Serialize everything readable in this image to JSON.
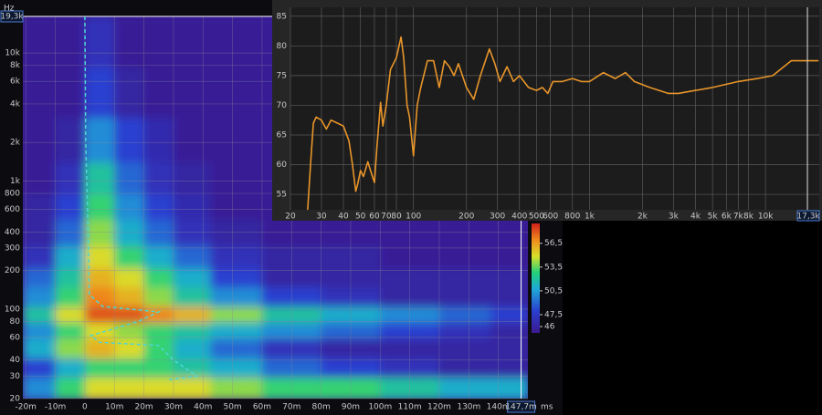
{
  "chart_data": [
    {
      "type": "heatmap",
      "y_unit": "Hz",
      "x_unit": "ms",
      "x": [
        -15,
        -5,
        5,
        15,
        25,
        35,
        50,
        70,
        90,
        110,
        130,
        145
      ],
      "y": [
        25,
        35,
        50,
        70,
        90,
        125,
        180,
        250,
        400,
        630,
        1000,
        2000,
        5000,
        12000
      ],
      "z": [
        [
          50,
          53,
          55,
          55,
          55,
          55,
          54,
          53,
          53,
          52,
          51,
          51
        ],
        [
          48,
          51,
          53,
          53,
          53,
          52,
          51,
          49,
          48,
          47,
          46,
          46
        ],
        [
          51,
          54,
          56,
          55,
          53,
          51,
          49,
          47,
          46,
          46,
          46,
          46
        ],
        [
          50,
          53,
          55,
          54,
          53,
          52,
          51,
          50,
          49,
          48,
          47,
          46
        ],
        [
          52,
          55,
          58,
          58,
          57,
          56,
          54,
          52,
          51,
          50,
          49,
          48
        ],
        [
          50,
          53,
          57,
          56,
          54,
          52,
          50,
          48,
          47,
          46,
          46,
          46
        ],
        [
          49,
          52,
          56,
          55,
          53,
          51,
          48,
          46,
          46,
          46,
          46,
          46
        ],
        [
          47,
          51,
          55,
          53,
          51,
          49,
          47,
          46,
          46,
          45.5,
          45.5,
          45.5
        ],
        [
          46,
          49,
          54,
          51,
          49,
          47,
          46,
          45.5,
          45.5,
          45.5,
          45.5,
          45.5
        ],
        [
          46,
          48,
          53,
          50,
          48,
          46.5,
          45.5,
          45.5,
          45.5,
          45.5,
          45.5,
          45.5
        ],
        [
          45.5,
          47,
          52,
          49,
          47,
          46,
          45.5,
          45.5,
          45.5,
          45.5,
          45.5,
          45.5
        ],
        [
          45.5,
          46,
          50,
          48,
          46.5,
          45.5,
          45.5,
          45.5,
          45.5,
          45.5,
          45.5,
          45.5
        ],
        [
          45.5,
          45.5,
          48,
          46,
          45.5,
          45.5,
          45.5,
          45.5,
          45.5,
          45.5,
          45.5,
          45.5
        ],
        [
          45.5,
          45.5,
          47,
          45.5,
          45.5,
          45.5,
          45.5,
          45.5,
          45.5,
          45.5,
          45.5,
          45.5
        ]
      ],
      "xlim": [
        -21,
        150
      ],
      "ylim": [
        20,
        19300
      ],
      "ylog": true,
      "zlim": [
        45.2,
        59
      ],
      "xticks": [
        {
          "value": -20,
          "label": "-20m"
        },
        {
          "value": -10,
          "label": "-10m"
        },
        0,
        {
          "value": 10,
          "label": "10m"
        },
        {
          "value": 20,
          "label": "20m"
        },
        {
          "value": 30,
          "label": "30m"
        },
        {
          "value": 40,
          "label": "40m"
        },
        {
          "value": 50,
          "label": "50m"
        },
        {
          "value": 60,
          "label": "60m"
        },
        {
          "value": 70,
          "label": "70m"
        },
        {
          "value": 80,
          "label": "80m"
        },
        {
          "value": 90,
          "label": "90m"
        },
        {
          "value": 100,
          "label": "100m"
        },
        {
          "value": 110,
          "label": "110m"
        },
        {
          "value": 120,
          "label": "120m"
        },
        {
          "value": 130,
          "label": "130m"
        },
        {
          "value": 140,
          "label": "140m"
        }
      ],
      "yticks": [
        20,
        30,
        40,
        60,
        80,
        100,
        200,
        300,
        400,
        600,
        800,
        {
          "value": 1000,
          "label": "1k"
        },
        {
          "value": 2000,
          "label": "2k"
        },
        {
          "value": 4000,
          "label": "4k"
        },
        {
          "value": 6000,
          "label": "6k"
        },
        {
          "value": 8000,
          "label": "8k"
        },
        {
          "value": 10000,
          "label": "10k"
        }
      ],
      "zticks": [
        {
          "value": 56.5,
          "label": "56,5"
        },
        {
          "value": 53.5,
          "label": "53,5"
        },
        {
          "value": 50.5,
          "label": "50,5"
        },
        {
          "value": 47.5,
          "label": "47,5"
        },
        46
      ],
      "x_cursor": {
        "value": 147.7,
        "label": "147,7m"
      },
      "y_cursor": {
        "value": 19300,
        "label": "19,3k"
      },
      "line": {
        "color": "#4fd6d6",
        "x": [
          0,
          0.3,
          1,
          1.5,
          6,
          25,
          18,
          2,
          5,
          25,
          30,
          38,
          28
        ],
        "y": [
          19300,
          2000,
          500,
          130,
          105,
          95,
          80,
          62,
          55,
          52,
          40,
          30,
          28
        ]
      }
    },
    {
      "type": "line",
      "xlog": true,
      "xlim": [
        20,
        20200
      ],
      "ylim": [
        52.4,
        86.5
      ],
      "yticks": [
        55,
        60,
        65,
        70,
        75,
        80,
        85
      ],
      "xticks": [
        20,
        30,
        40,
        50,
        60,
        70,
        80,
        100,
        200,
        300,
        400,
        500,
        600,
        800,
        {
          "value": 1000,
          "label": "1k"
        },
        {
          "value": 2000,
          "label": "2k"
        },
        {
          "value": 3000,
          "label": "3k"
        },
        {
          "value": 4000,
          "label": "4k"
        },
        {
          "value": 5000,
          "label": "5k"
        },
        {
          "value": 6000,
          "label": "6k"
        },
        {
          "value": 7000,
          "label": "7k"
        },
        {
          "value": 8000,
          "label": "8k"
        },
        {
          "value": 10000,
          "label": "10k"
        }
      ],
      "x_cursor": {
        "value": 17300,
        "label": "17,3k"
      },
      "series": [
        {
          "color": "#e8952a",
          "x": [
            25,
            26,
            27,
            28,
            30,
            32,
            34,
            37,
            40,
            43,
            45,
            47,
            48,
            50,
            52,
            55,
            57,
            60,
            62,
            65,
            67,
            70,
            74,
            80,
            85,
            88,
            92,
            95,
            100,
            105,
            110,
            120,
            130,
            140,
            150,
            160,
            170,
            180,
            200,
            220,
            240,
            270,
            290,
            310,
            340,
            370,
            400,
            450,
            500,
            540,
            580,
            620,
            700,
            800,
            900,
            1000,
            1200,
            1400,
            1600,
            1800,
            2200,
            2800,
            3200,
            4000,
            5000,
            7000,
            9000,
            11000,
            14000,
            20000
          ],
          "values": [
            52,
            60,
            67,
            68,
            67.5,
            66,
            67.5,
            67,
            66.5,
            64,
            60,
            55.5,
            56.5,
            59,
            58,
            60.5,
            59,
            57,
            63,
            70.5,
            66.5,
            70,
            76,
            78,
            81.5,
            78,
            70,
            68,
            61.5,
            70,
            73,
            77.5,
            77.5,
            73,
            77.5,
            76.5,
            75,
            77,
            73,
            71,
            75,
            79.5,
            77,
            74,
            76.5,
            74,
            75,
            73,
            72.5,
            73,
            72,
            74,
            74,
            74.5,
            74,
            74,
            75.5,
            74.5,
            75.5,
            74,
            73,
            72,
            72,
            72.5,
            73,
            74,
            74.5,
            75,
            77.5,
            77.5
          ]
        }
      ]
    }
  ]
}
